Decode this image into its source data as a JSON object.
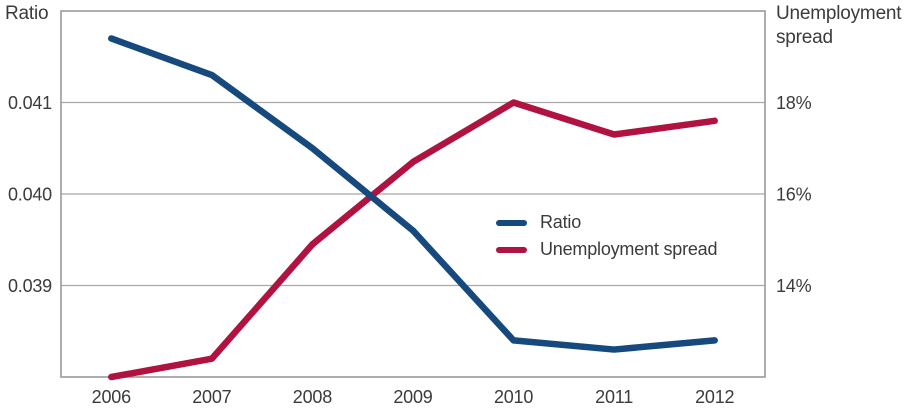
{
  "chart_data": {
    "type": "line",
    "title": "",
    "categories": [
      "2006",
      "2007",
      "2008",
      "2009",
      "2010",
      "2011",
      "2012"
    ],
    "series": [
      {
        "name": "Ratio",
        "axis": "left",
        "color": "#16497d",
        "values": [
          0.0417,
          0.0413,
          0.0405,
          0.0396,
          0.0384,
          0.0383,
          0.0384
        ]
      },
      {
        "name": "Unemployment spread",
        "axis": "right",
        "color": "#b11341",
        "values": [
          12.0,
          12.4,
          14.9,
          16.7,
          18.0,
          17.3,
          17.6
        ]
      }
    ],
    "left_axis": {
      "title": "Ratio",
      "range": [
        0.038,
        0.042
      ],
      "ticks": [
        0.041,
        0.04,
        0.039
      ],
      "tick_labels": [
        "0.041",
        "0.040",
        "0.039"
      ]
    },
    "right_axis": {
      "title": "Unemployment spread",
      "range": [
        12,
        20
      ],
      "ticks": [
        18,
        16,
        14
      ],
      "tick_labels": [
        "18%",
        "16%",
        "14%"
      ]
    },
    "grid": "horizontal-only",
    "legend_position": "inside-center-right",
    "colors": {
      "grid": "#a8a8a8",
      "border": "#9a9a9a",
      "text": "#3b3b3b"
    }
  }
}
